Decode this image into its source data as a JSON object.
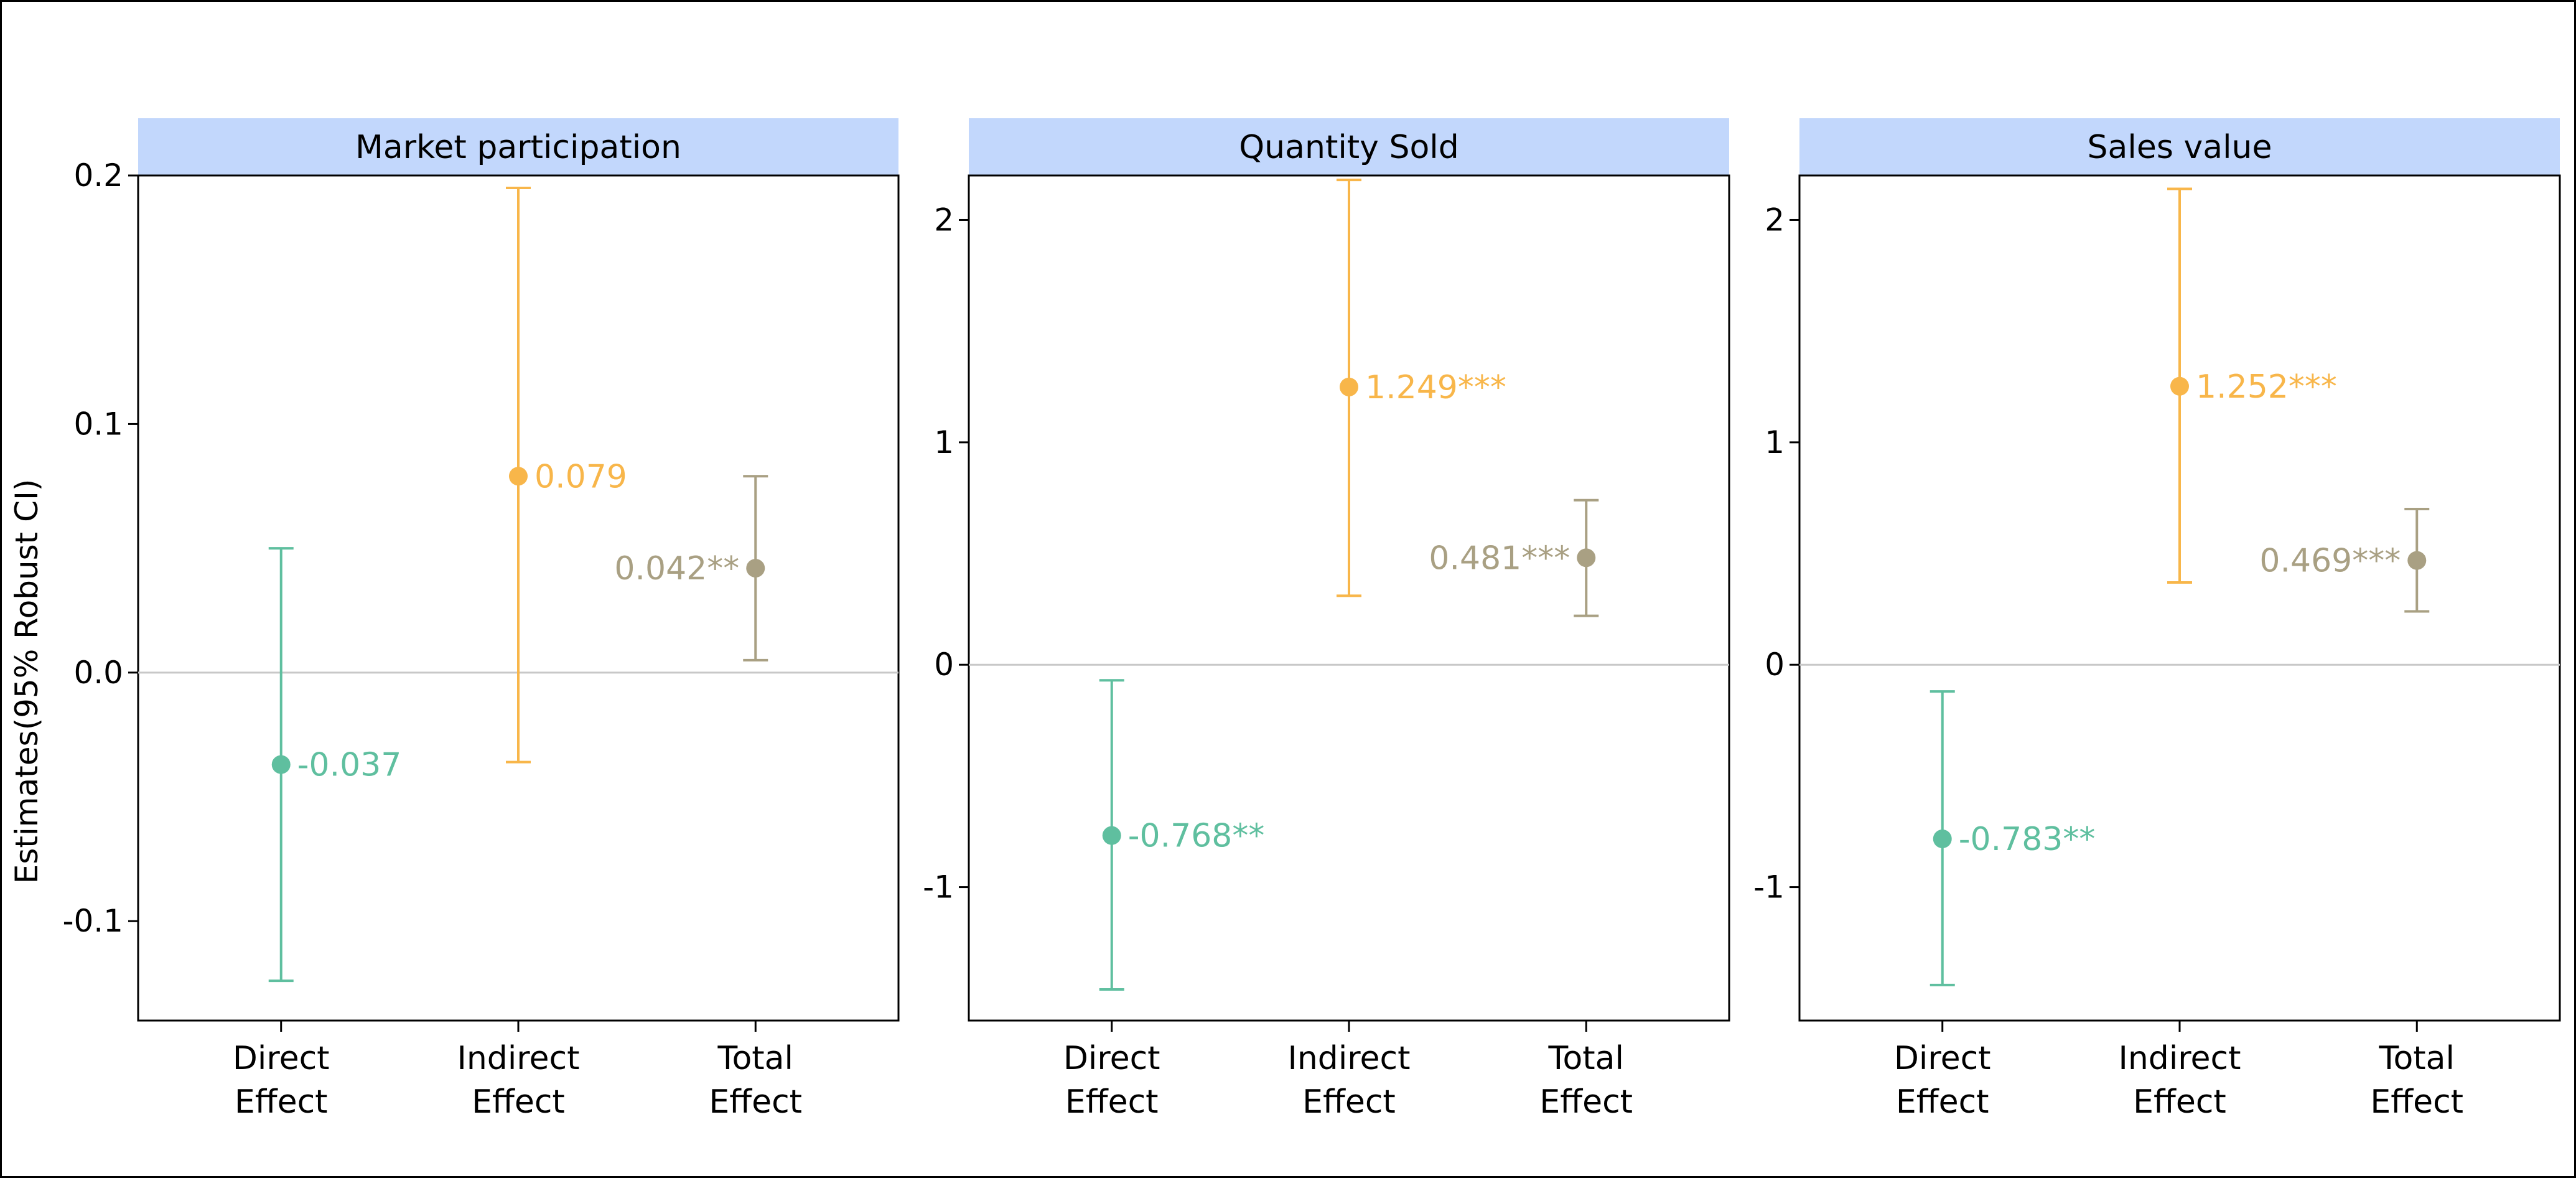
{
  "chart_data": {
    "type": "scatter",
    "ylabel": "Estimates(95% Robust CI)",
    "categories": [
      "Direct\nEffect",
      "Indirect\nEffect",
      "Total\nEffect"
    ],
    "colors": {
      "direct": "#5fbf9f",
      "indirect": "#f8b64a",
      "total": "#a9a083",
      "strip": "#c2d7fc",
      "zero_line": "#c8c8c8"
    },
    "panels": [
      {
        "title": "Market participation",
        "ylim": [
          -0.14,
          0.2
        ],
        "yticks": [
          -0.1,
          0.0,
          0.1,
          0.2
        ],
        "ytick_labels": [
          "-0.1",
          "0.0",
          "0.1",
          "0.2"
        ],
        "points": [
          {
            "category": "Direct\nEffect",
            "estimate": -0.037,
            "ci_low": -0.124,
            "ci_high": 0.05,
            "label": "-0.037",
            "label_side": "right"
          },
          {
            "category": "Indirect\nEffect",
            "estimate": 0.079,
            "ci_low": -0.036,
            "ci_high": 0.195,
            "label": "0.079",
            "label_side": "right"
          },
          {
            "category": "Total\nEffect",
            "estimate": 0.042,
            "ci_low": 0.005,
            "ci_high": 0.079,
            "label": "0.042**",
            "label_side": "left"
          }
        ]
      },
      {
        "title": "Quantity Sold",
        "ylim": [
          -1.6,
          2.2
        ],
        "yticks": [
          -1,
          0,
          1,
          2
        ],
        "ytick_labels": [
          "-1",
          "0",
          "1",
          "2"
        ],
        "points": [
          {
            "category": "Direct\nEffect",
            "estimate": -0.768,
            "ci_low": -1.46,
            "ci_high": -0.07,
            "label": "-0.768**",
            "label_side": "right"
          },
          {
            "category": "Indirect\nEffect",
            "estimate": 1.249,
            "ci_low": 0.31,
            "ci_high": 2.18,
            "label": "1.249***",
            "label_side": "right"
          },
          {
            "category": "Total\nEffect",
            "estimate": 0.481,
            "ci_low": 0.22,
            "ci_high": 0.74,
            "label": "0.481***",
            "label_side": "left"
          }
        ]
      },
      {
        "title": "Sales value",
        "ylim": [
          -1.6,
          2.2
        ],
        "yticks": [
          -1,
          0,
          1,
          2
        ],
        "ytick_labels": [
          "-1",
          "0",
          "1",
          "2"
        ],
        "points": [
          {
            "category": "Direct\nEffect",
            "estimate": -0.783,
            "ci_low": -1.44,
            "ci_high": -0.12,
            "label": "-0.783**",
            "label_side": "right"
          },
          {
            "category": "Indirect\nEffect",
            "estimate": 1.252,
            "ci_low": 0.37,
            "ci_high": 2.14,
            "label": "1.252***",
            "label_side": "right"
          },
          {
            "category": "Total\nEffect",
            "estimate": 0.469,
            "ci_low": 0.24,
            "ci_high": 0.7,
            "label": "0.469***",
            "label_side": "left"
          }
        ]
      }
    ]
  }
}
